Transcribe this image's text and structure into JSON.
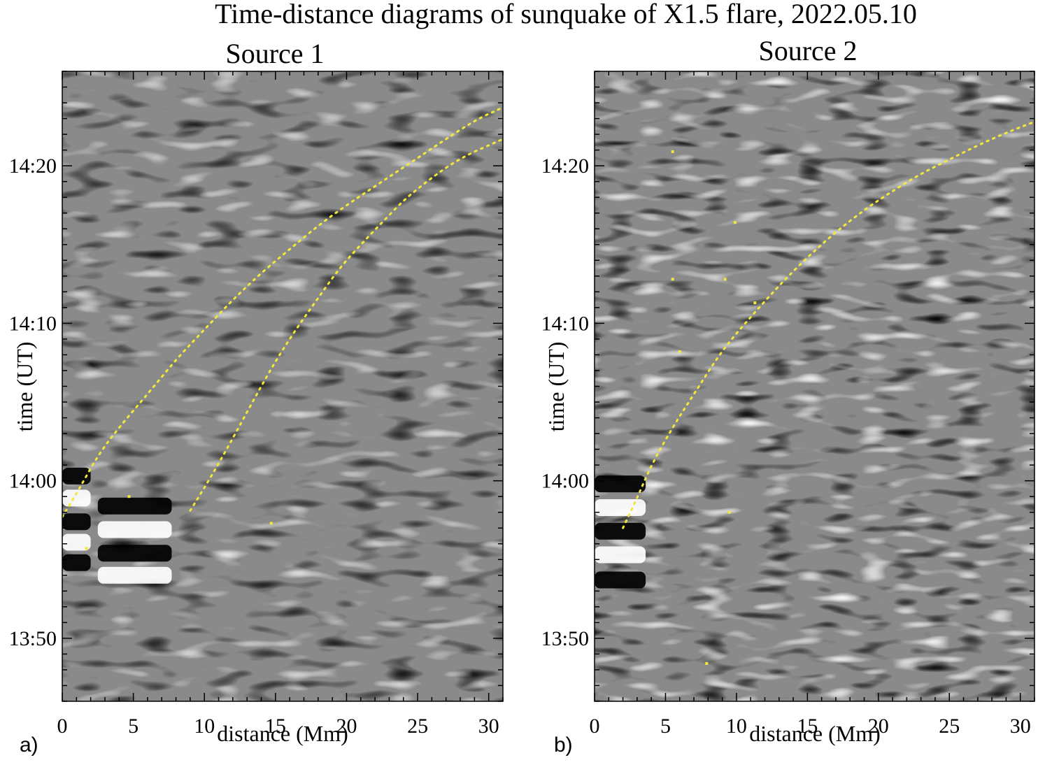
{
  "figure": {
    "title": "Time-distance diagrams of sunquake of X1.5 flare, 2022.05.10"
  },
  "chart_data": [
    {
      "type": "heatmap",
      "panel_letter": "a)",
      "title": "Source 1",
      "xlabel": "distance (Mm)",
      "ylabel": "time (UT)",
      "xlim": [
        0,
        31
      ],
      "ylim": [
        "13:46",
        "14:26"
      ],
      "x_ticks": [
        "0",
        "5",
        "10",
        "15",
        "20",
        "25",
        "30"
      ],
      "x_tick_values": [
        0,
        5,
        10,
        15,
        20,
        25,
        30
      ],
      "y_ticks": [
        "13:50",
        "14:00",
        "14:10",
        "14:20"
      ],
      "y_tick_values": [
        "13:50",
        "14:00",
        "14:10",
        "14:20"
      ],
      "colormap": "grayscale",
      "overlays": [
        {
          "kind": "dotted-curve",
          "color": "#f2e83a",
          "points": [
            [
              0.0,
              "13:57.7"
            ],
            [
              1.2,
              "13:59.5"
            ],
            [
              2.5,
              "14:01.6"
            ],
            [
              4.0,
              "14:03.4"
            ],
            [
              6.0,
              "14:05.5"
            ],
            [
              8.0,
              "14:07.7"
            ],
            [
              10.0,
              "14:09.6"
            ],
            [
              12.0,
              "14:11.5"
            ],
            [
              14.0,
              "14:13.2"
            ],
            [
              16.0,
              "14:14.7"
            ],
            [
              18.0,
              "14:16.2"
            ],
            [
              20.0,
              "14:17.5"
            ],
            [
              22.0,
              "14:18.7"
            ],
            [
              24.0,
              "14:19.9"
            ],
            [
              26.0,
              "14:21.1"
            ],
            [
              28.0,
              "14:22.3"
            ],
            [
              29.5,
              "14:23.1"
            ],
            [
              31.0,
              "14:23.7"
            ]
          ]
        },
        {
          "kind": "dotted-curve",
          "color": "#f2e83a",
          "points": [
            [
              9.0,
              "13:58.1"
            ],
            [
              10.5,
              "14:00.3"
            ],
            [
              12.0,
              "14:02.7"
            ],
            [
              13.5,
              "14:05.2"
            ],
            [
              15.0,
              "14:07.6"
            ],
            [
              16.5,
              "14:09.7"
            ],
            [
              18.0,
              "14:11.6"
            ],
            [
              19.5,
              "14:13.5"
            ],
            [
              21.0,
              "14:15.0"
            ],
            [
              22.5,
              "14:16.4"
            ],
            [
              24.0,
              "14:17.8"
            ],
            [
              25.5,
              "14:18.9"
            ],
            [
              27.0,
              "14:19.9"
            ],
            [
              28.5,
              "14:20.7"
            ],
            [
              30.0,
              "14:21.3"
            ],
            [
              31.0,
              "14:21.7"
            ]
          ]
        }
      ],
      "markers": [
        {
          "color": "#f2e83a",
          "points": [
            [
              4.7,
              "13:59.0"
            ],
            [
              14.7,
              "13:57.3"
            ],
            [
              1.7,
              "13:55.7"
            ]
          ]
        }
      ]
    },
    {
      "type": "heatmap",
      "panel_letter": "b)",
      "title": "Source 2",
      "xlabel": "distance (Mm)",
      "ylabel": "time (UT)",
      "xlim": [
        0,
        31
      ],
      "ylim": [
        "13:46",
        "14:26"
      ],
      "x_ticks": [
        "0",
        "5",
        "10",
        "15",
        "20",
        "25",
        "30"
      ],
      "x_tick_values": [
        0,
        5,
        10,
        15,
        20,
        25,
        30
      ],
      "y_ticks": [
        "13:50",
        "14:00",
        "14:10",
        "14:20"
      ],
      "y_tick_values": [
        "13:50",
        "14:00",
        "14:10",
        "14:20"
      ],
      "colormap": "grayscale",
      "overlays": [
        {
          "kind": "dotted-curve",
          "color": "#f2e83a",
          "points": [
            [
              2.0,
              "13:57.0"
            ],
            [
              3.0,
              "13:58.9"
            ],
            [
              4.0,
              "14:01.0"
            ],
            [
              5.5,
              "14:03.4"
            ],
            [
              7.0,
              "14:05.5"
            ],
            [
              9.0,
              "14:08.3"
            ],
            [
              11.0,
              "14:10.4"
            ],
            [
              13.0,
              "14:12.4"
            ],
            [
              15.0,
              "14:14.2"
            ],
            [
              17.0,
              "14:15.8"
            ],
            [
              19.0,
              "14:17.2"
            ],
            [
              21.0,
              "14:18.4"
            ],
            [
              23.0,
              "14:19.5"
            ],
            [
              25.0,
              "14:20.4"
            ],
            [
              27.0,
              "14:21.3"
            ],
            [
              29.0,
              "14:22.1"
            ],
            [
              31.0,
              "14:22.8"
            ]
          ]
        }
      ],
      "markers": [
        {
          "color": "#f2e83a",
          "points": [
            [
              5.5,
              "14:20.9"
            ],
            [
              9.9,
              "14:16.4"
            ],
            [
              5.5,
              "14:12.8"
            ],
            [
              9.2,
              "14:12.8"
            ],
            [
              11.3,
              "14:11.3"
            ],
            [
              6.0,
              "14:08.2"
            ],
            [
              9.5,
              "13:58.0"
            ],
            [
              7.9,
              "13:48.4"
            ]
          ]
        }
      ]
    }
  ]
}
